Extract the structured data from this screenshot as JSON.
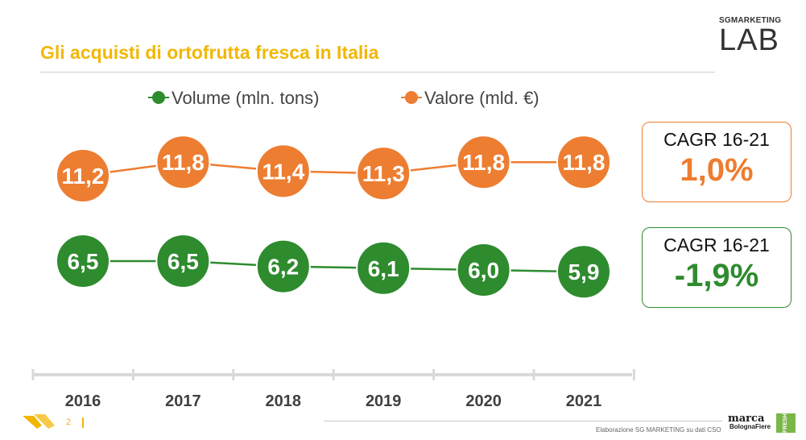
{
  "slide": {
    "title": "Gli acquisti di ortofrutta fresca in Italia",
    "page_number": "2",
    "source": "Elaborazione SG MARKETING su dati CSO"
  },
  "logos": {
    "top_small": "SGMARKETING",
    "top_big": "LAB",
    "marca": "marca",
    "bolognafiere": "BolognaFiere",
    "fresh": "FRESH"
  },
  "chart_data": {
    "type": "line",
    "x": [
      "2016",
      "2017",
      "2018",
      "2019",
      "2020",
      "2021"
    ],
    "series": [
      {
        "name": "Valore (mld. €)",
        "color": "#ed7d31",
        "values": [
          11.2,
          11.8,
          11.4,
          11.3,
          11.8,
          11.8
        ],
        "labels": [
          "11,2",
          "11,8",
          "11,4",
          "11,3",
          "11,8",
          "11,8"
        ]
      },
      {
        "name": "Volume (mln. tons)",
        "color": "#2e8b2e",
        "values": [
          6.5,
          6.5,
          6.2,
          6.1,
          6.0,
          5.9
        ],
        "labels": [
          "6,5",
          "6,5",
          "6,2",
          "6,1",
          "6,0",
          "5,9"
        ]
      }
    ],
    "legend": [
      "Volume (mln. tons)",
      "Valore (mld. €)"
    ],
    "legend_position": "top"
  },
  "cagr": [
    {
      "label": "CAGR 16-21",
      "value": "1,0%",
      "series": "Valore (mld. €)"
    },
    {
      "label": "CAGR 16-21",
      "value": "-1,9%",
      "series": "Volume (mln. tons)"
    }
  ]
}
